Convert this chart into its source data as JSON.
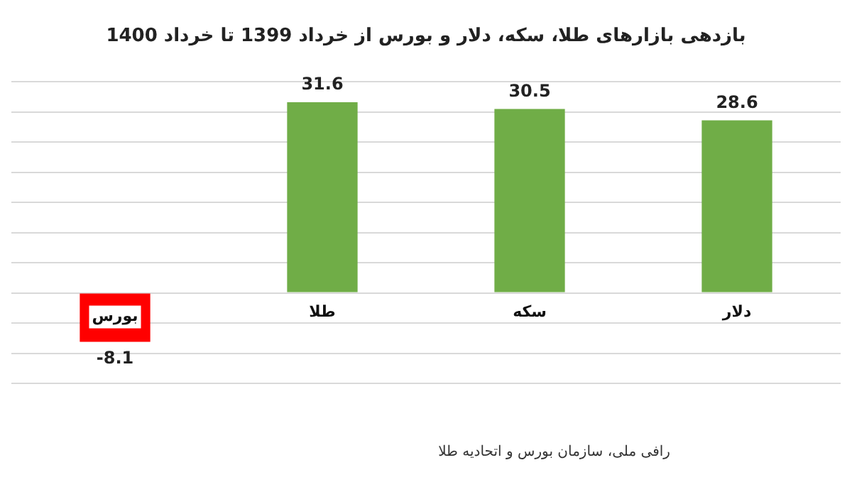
{
  "chart_data": {
    "type": "bar",
    "title": "بازدهی بازارهای طلا، سکه، دلار و بورس از خرداد 1399 تا خرداد 1400",
    "categories": [
      "بورس",
      "طلا",
      "سکه",
      "دلار"
    ],
    "values": [
      -8.1,
      31.6,
      30.5,
      28.6
    ],
    "colors": [
      "#ff0000",
      "#70ad47",
      "#70ad47",
      "#70ad47"
    ],
    "data_labels": true,
    "ylim": [
      -15,
      35
    ],
    "yticks": [
      {
        "value": -15,
        "label": null
      },
      {
        "value": -10,
        "label": null
      },
      {
        "value": -5,
        "label": null
      },
      {
        "value": 0,
        "label": null
      },
      {
        "value": 5,
        "label": null
      },
      {
        "value": 10,
        "label": null
      },
      {
        "value": 15,
        "label": null
      },
      {
        "value": 20,
        "label": null
      },
      {
        "value": 25,
        "label": null
      },
      {
        "value": 30,
        "label": null
      },
      {
        "value": 35,
        "label": null
      }
    ],
    "grid": "y",
    "annotations": [
      "رافی ملی، سازمان بورس و اتحادیه طلا"
    ]
  }
}
